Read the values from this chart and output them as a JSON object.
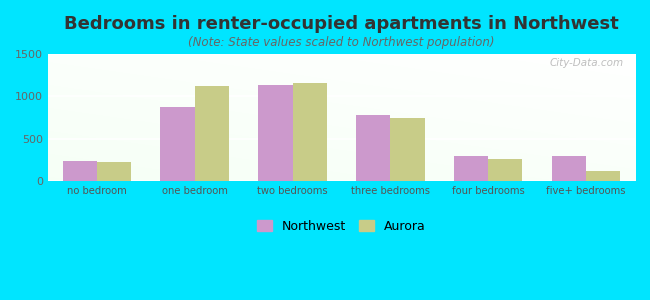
{
  "title": "Bedrooms in renter-occupied apartments in Northwest",
  "subtitle": "(Note: State values scaled to Northwest population)",
  "categories": [
    "no bedroom",
    "one bedroom",
    "two bedrooms",
    "three bedrooms",
    "four bedrooms",
    "five+ bedrooms"
  ],
  "northwest_values": [
    230,
    870,
    1130,
    775,
    295,
    290
  ],
  "aurora_values": [
    220,
    1120,
    1155,
    740,
    265,
    115
  ],
  "northwest_color": "#cc99cc",
  "aurora_color": "#c8cc88",
  "ylim": [
    0,
    1500
  ],
  "yticks": [
    0,
    500,
    1000,
    1500
  ],
  "background_outer": "#00e5ff",
  "bar_width": 0.35,
  "legend_labels": [
    "Northwest",
    "Aurora"
  ],
  "watermark": "City-Data.com",
  "title_fontsize": 13,
  "subtitle_fontsize": 8.5
}
